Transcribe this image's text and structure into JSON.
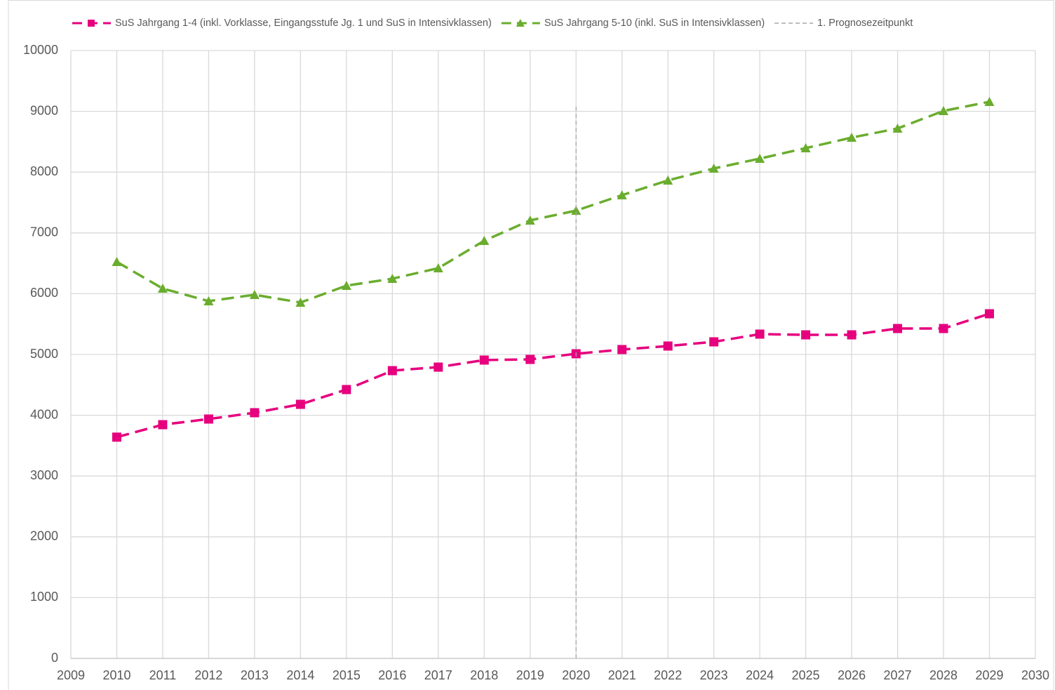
{
  "chart_data": {
    "type": "line",
    "x": [
      2010,
      2011,
      2012,
      2013,
      2014,
      2015,
      2016,
      2017,
      2018,
      2019,
      2020,
      2021,
      2022,
      2023,
      2024,
      2025,
      2026,
      2027,
      2028,
      2029
    ],
    "series": [
      {
        "name": "SuS Jahrgang 1-4 (inkl. Vorklasse, Eingangsstufe Jg. 1 und SuS in Intensivklassen)",
        "color": "#e6007e",
        "marker": "square",
        "values": [
          3640,
          3845,
          3938,
          4042,
          4180,
          4423,
          4734,
          4792,
          4908,
          4919,
          5012,
          5081,
          5139,
          5208,
          5335,
          5323,
          5323,
          5427,
          5427,
          5670
        ]
      },
      {
        "name": "SuS Jahrgang 5-10 (inkl. SuS in Intensivklassen)",
        "color": "#6aad2e",
        "marker": "triangle",
        "values": [
          6524,
          6085,
          5878,
          5982,
          5855,
          6132,
          6247,
          6420,
          6871,
          7206,
          7367,
          7621,
          7864,
          8060,
          8222,
          8395,
          8568,
          8718,
          9007,
          9157
        ]
      },
      {
        "name": "1. Prognosezeitpunkt",
        "color": "#a6a6a6",
        "marker": null,
        "x": [
          2020,
          2020
        ],
        "values": [
          0,
          9100
        ]
      }
    ],
    "xlim": [
      2009,
      2030
    ],
    "xticks": [
      2009,
      2010,
      2011,
      2012,
      2013,
      2014,
      2015,
      2016,
      2017,
      2018,
      2019,
      2020,
      2021,
      2022,
      2023,
      2024,
      2025,
      2026,
      2027,
      2028,
      2029,
      2030
    ],
    "ylim": [
      0,
      10000
    ],
    "yticks": [
      0,
      1000,
      2000,
      3000,
      4000,
      5000,
      6000,
      7000,
      8000,
      9000,
      10000
    ],
    "grid": true,
    "legend": "top"
  }
}
